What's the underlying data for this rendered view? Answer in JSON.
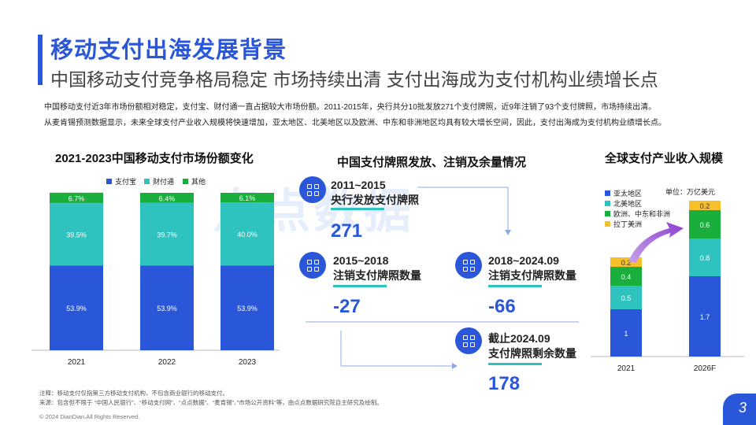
{
  "header": {
    "title": "移动支付出海发展背景",
    "subtitle": "中国移动支付竞争格局稳定 市场持续出清 支付出海成为支付机构业绩增长点"
  },
  "intro": {
    "line1": "中国移动支付近3年市场份额相对稳定，支付宝、财付通一直占据较大市场份额。2011-2015年，央行共分10批发放271个支付牌照，近9年注销了93个支付牌照，市场持续出清。",
    "line2": "从麦肯锡预测数据显示，未来全球支付产业收入规模将快速增加，亚太地区、北美地区以及欧洲、中东和非洲地区均具有较大增长空间，因此，支付出海成为支付机构业绩增长点。"
  },
  "watermark": "点点数据",
  "licenses": {
    "title": "中国支付牌照发放、注销及余量情况",
    "items": [
      {
        "period": "2011~2015",
        "desc": "央行发放支付牌照",
        "value": "271"
      },
      {
        "period": "2015~2018",
        "desc": "注销支付牌照数量",
        "value": "-27"
      },
      {
        "period": "2018~2024.09",
        "desc": "注销支付牌照数量",
        "value": "-66"
      },
      {
        "period": "截止2024.09",
        "desc": "支付牌照剩余数量",
        "value": "178"
      }
    ]
  },
  "chart_data": [
    {
      "type": "bar",
      "stacked": true,
      "title": "2021-2023中国移动支付市场份额变化",
      "categories": [
        "2021",
        "2022",
        "2023"
      ],
      "series": [
        {
          "name": "支付宝",
          "color": "#2a57d9",
          "values": [
            53.9,
            53.9,
            53.9
          ],
          "labels": [
            "53.9%",
            "53.9%",
            "53.9%"
          ]
        },
        {
          "name": "财付通",
          "color": "#2fc3c0",
          "values": [
            39.5,
            39.7,
            40.0
          ],
          "labels": [
            "39.5%",
            "39.7%",
            "40.0%"
          ]
        },
        {
          "name": "其他",
          "color": "#1aae3c",
          "values": [
            6.7,
            6.4,
            6.1
          ],
          "labels": [
            "6.7%",
            "6.4%",
            "6.1%"
          ]
        }
      ],
      "ylim": [
        0,
        100
      ],
      "legend": "top"
    },
    {
      "type": "bar",
      "stacked": true,
      "title": "全球支付产业收入规模",
      "unit": "单位：万亿美元",
      "categories": [
        "2021",
        "2026F"
      ],
      "series": [
        {
          "name": "亚太地区",
          "color": "#2a57d9",
          "values": [
            1,
            1.7
          ]
        },
        {
          "name": "北美地区",
          "color": "#2fc3c0",
          "values": [
            0.5,
            0.8
          ]
        },
        {
          "name": "欧洲、中东和非洲",
          "color": "#1aae3c",
          "values": [
            0.4,
            0.6
          ]
        },
        {
          "name": "拉丁美洲",
          "color": "#f5c02a",
          "values": [
            0.2,
            0.2
          ]
        }
      ],
      "ylim": [
        0,
        3.3
      ],
      "legend": "top-left"
    }
  ],
  "footer": {
    "note1": "注释：移动支付仅指第三方移动支付机构，不包含商业银行的移动支付。",
    "note2": "来源：包含但不限于 “中国人民银行”、“移动支付网”、“点点数据”、“麦肯锡”、”市场公开资料“等，由点点数据研究院自主研究及绘制。",
    "copyright": "© 2024 DianDian.All Rights Reserved.",
    "page": "3"
  }
}
